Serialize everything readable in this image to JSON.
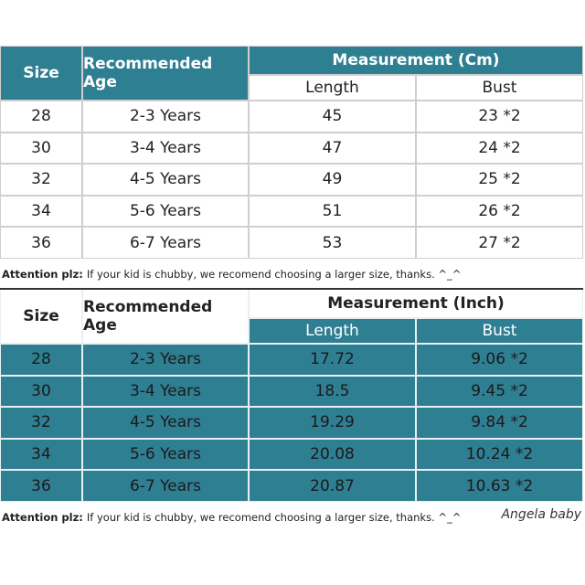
{
  "tables": [
    {
      "header": {
        "size": "Size",
        "age": "Recommended Age",
        "measurement": "Measurement (Cm)",
        "length": "Length",
        "bust": "Bust"
      },
      "rows": [
        [
          "28",
          "2-3 Years",
          "45",
          "23 *2"
        ],
        [
          "30",
          "3-4 Years",
          "47",
          "24 *2"
        ],
        [
          "32",
          "4-5 Years",
          "49",
          "25 *2"
        ],
        [
          "34",
          "5-6 Years",
          "51",
          "26 *2"
        ],
        [
          "36",
          "6-7 Years",
          "53",
          "27 *2"
        ]
      ],
      "note": {
        "label": "Attention plz:",
        "text": "If your kid is chubby, we recomend choosing a larger size, thanks. ^_^"
      }
    },
    {
      "header": {
        "size": "Size",
        "age": "Recommended Age",
        "measurement": "Measurement (Inch)",
        "length": "Length",
        "bust": "Bust"
      },
      "rows": [
        [
          "28",
          "2-3 Years",
          "17.72",
          "9.06 *2"
        ],
        [
          "30",
          "3-4 Years",
          "18.5",
          "9.45 *2"
        ],
        [
          "32",
          "4-5 Years",
          "19.29",
          "9.84 *2"
        ],
        [
          "34",
          "5-6 Years",
          "20.08",
          "10.24 *2"
        ],
        [
          "36",
          "6-7 Years",
          "20.87",
          "10.63 *2"
        ]
      ],
      "note": {
        "label": "Attention plz:",
        "text": "If your kid is chubby, we recomend choosing a larger size, thanks. ^_^"
      }
    }
  ],
  "watermark": "Angela baby"
}
